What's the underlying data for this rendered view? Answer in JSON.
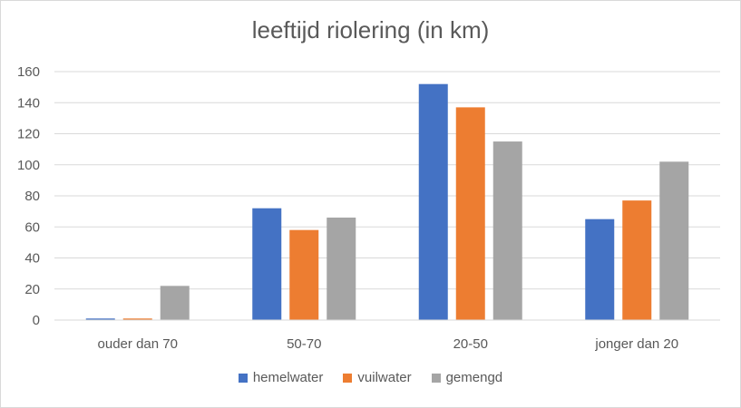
{
  "chart_data": {
    "type": "bar",
    "title": "leeftijd riolering (in km)",
    "categories": [
      "ouder dan 70",
      "50-70",
      "20-50",
      "jonger dan 20"
    ],
    "series": [
      {
        "name": "hemelwater",
        "color": "#4472C4",
        "values": [
          1,
          72,
          152,
          65
        ]
      },
      {
        "name": "vuilwater",
        "color": "#ED7D31",
        "values": [
          1,
          58,
          137,
          77
        ]
      },
      {
        "name": "gemengd",
        "color": "#A5A5A5",
        "values": [
          22,
          66,
          115,
          102
        ]
      }
    ],
    "ylim": [
      0,
      160
    ],
    "yticks": [
      0,
      20,
      40,
      60,
      80,
      100,
      120,
      140,
      160
    ],
    "grid": true,
    "legend_position": "bottom"
  }
}
